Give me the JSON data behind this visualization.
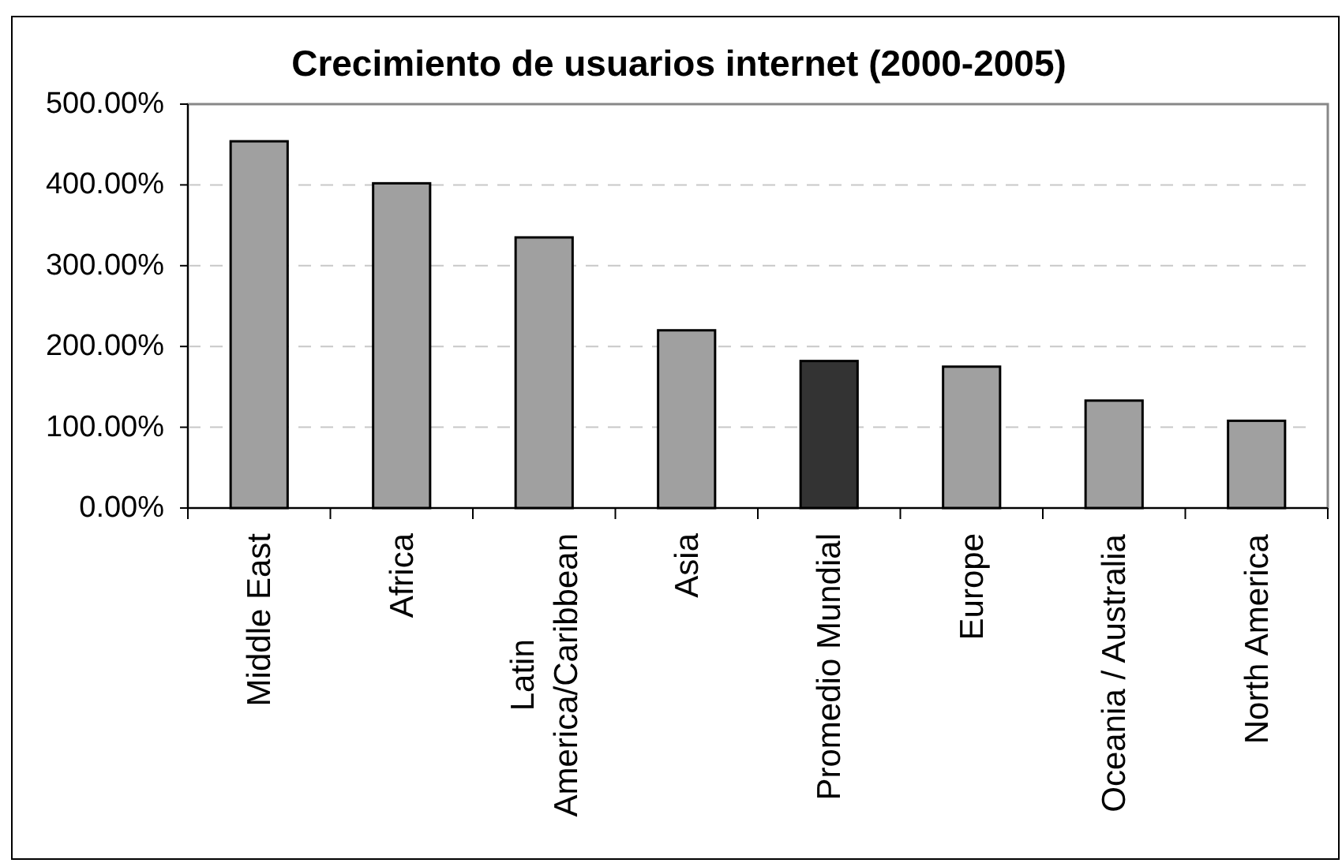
{
  "chart_data": {
    "type": "bar",
    "title": "Crecimiento de usuarios internet (2000-2005)",
    "categories": [
      "Middle East",
      "Africa",
      "Latin America/Caribbean",
      "Asia",
      "Promedio Mundial",
      "Europe",
      "Oceania / Australia",
      "North America"
    ],
    "values": [
      454,
      402,
      335,
      220,
      182,
      175,
      133,
      108
    ],
    "colors": [
      "#a0a0a0",
      "#a0a0a0",
      "#a0a0a0",
      "#a0a0a0",
      "#333333",
      "#a0a0a0",
      "#a0a0a0",
      "#a0a0a0"
    ],
    "ylim": [
      0,
      500
    ],
    "yticks": [
      {
        "value": 0,
        "label": "0.00%"
      },
      {
        "value": 100,
        "label": "100.00%"
      },
      {
        "value": 200,
        "label": "200.00%"
      },
      {
        "value": 300,
        "label": "300.00%"
      },
      {
        "value": 400,
        "label": "400.00%"
      },
      {
        "value": 500,
        "label": "500.00%"
      }
    ],
    "grid": "y"
  }
}
